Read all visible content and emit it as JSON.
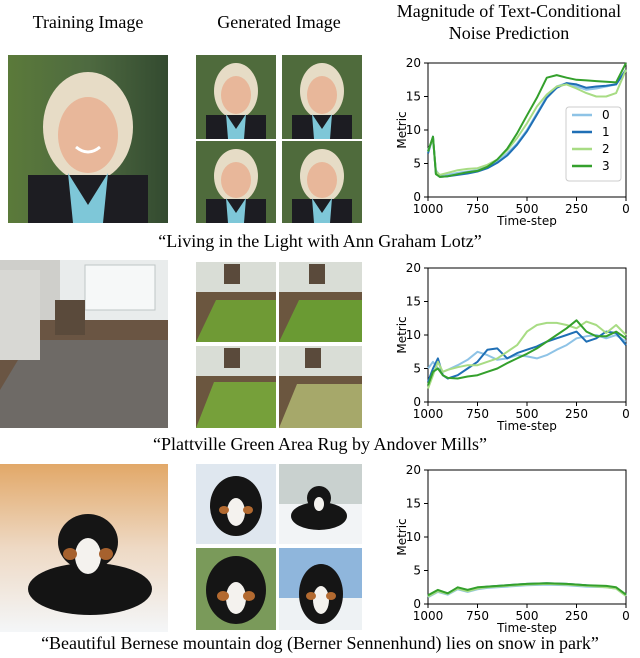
{
  "headers": {
    "training": "Training Image",
    "generated": "Generated Image",
    "magnitude": "Magnitude of Text-Conditional Noise Prediction"
  },
  "captions": [
    "“Living in the Light with Ann Graham Lotz”",
    "“Plattville Green Area Rug by Andover Mills”",
    "“Beautiful Bernese mountain dog (Berner Sennenhund) lies on snow in park”"
  ],
  "colors": {
    "s0": "#8ec3e6",
    "s1": "#1f6fb5",
    "s2": "#a8dc84",
    "s3": "#34a02c"
  },
  "chart_data": [
    {
      "type": "line",
      "xlabel": "Time-step",
      "ylabel": "Metric",
      "xlim": [
        1000,
        0
      ],
      "ylim": [
        0,
        20
      ],
      "xticks": [
        "1000",
        "750",
        "500",
        "250",
        "0"
      ],
      "yticks": [
        "0",
        "5",
        "10",
        "15",
        "20"
      ],
      "legend_position": "center-right",
      "series": [
        {
          "name": "0",
          "x": [
            1000,
            975,
            960,
            940,
            900,
            850,
            800,
            750,
            700,
            650,
            600,
            550,
            500,
            450,
            400,
            350,
            300,
            250,
            200,
            150,
            100,
            50,
            0
          ],
          "y": [
            7,
            8.5,
            4,
            3.2,
            3.3,
            3.6,
            3.8,
            4,
            4.5,
            5.3,
            6.5,
            8,
            10,
            12.5,
            15,
            16.5,
            17,
            16.5,
            16,
            16.2,
            16.5,
            16.8,
            19
          ]
        },
        {
          "name": "1",
          "x": [
            1000,
            975,
            960,
            940,
            900,
            850,
            800,
            750,
            700,
            650,
            600,
            550,
            500,
            450,
            400,
            350,
            300,
            250,
            200,
            150,
            100,
            50,
            0
          ],
          "y": [
            6.5,
            9,
            3.5,
            3,
            3.1,
            3.3,
            3.5,
            3.8,
            4.3,
            5.1,
            6.2,
            7.8,
            9.8,
            12.3,
            14.8,
            16.3,
            17,
            16.8,
            16.3,
            16.5,
            16.6,
            16.8,
            19
          ]
        },
        {
          "name": "2",
          "x": [
            1000,
            975,
            960,
            940,
            900,
            850,
            800,
            750,
            700,
            650,
            600,
            550,
            500,
            450,
            400,
            350,
            300,
            250,
            200,
            150,
            100,
            50,
            0
          ],
          "y": [
            6.8,
            8.8,
            3.8,
            3.3,
            3.6,
            4,
            4.2,
            4.3,
            4.8,
            5.6,
            7,
            8.8,
            11,
            13.5,
            15.3,
            16.5,
            16.8,
            16.2,
            15.5,
            15,
            15,
            15.5,
            19
          ]
        },
        {
          "name": "3",
          "x": [
            1000,
            975,
            960,
            940,
            900,
            850,
            800,
            750,
            700,
            650,
            600,
            550,
            500,
            450,
            400,
            350,
            300,
            250,
            200,
            150,
            100,
            50,
            0
          ],
          "y": [
            6.8,
            9,
            3.4,
            3,
            3.1,
            3.4,
            3.7,
            3.9,
            4.5,
            5.6,
            7.2,
            9.5,
            12.2,
            14.8,
            17.8,
            18.2,
            17.8,
            17.5,
            17.4,
            17.3,
            17.2,
            17.1,
            20
          ]
        }
      ]
    },
    {
      "type": "line",
      "xlabel": "Time-step",
      "ylabel": "Metric",
      "xlim": [
        1000,
        0
      ],
      "ylim": [
        0,
        20
      ],
      "xticks": [
        "1000",
        "750",
        "500",
        "250",
        "0"
      ],
      "yticks": [
        "0",
        "5",
        "10",
        "15",
        "20"
      ],
      "series": [
        {
          "name": "0",
          "x": [
            1000,
            975,
            950,
            925,
            900,
            850,
            800,
            750,
            700,
            650,
            600,
            550,
            500,
            450,
            400,
            350,
            300,
            250,
            200,
            150,
            100,
            50,
            0
          ],
          "y": [
            5,
            6,
            5,
            4.5,
            4.8,
            5.5,
            6.3,
            7.5,
            7,
            6.3,
            6.5,
            7,
            6.8,
            6.5,
            7,
            7.8,
            8.5,
            9.5,
            9.8,
            10,
            9.5,
            10,
            9
          ]
        },
        {
          "name": "1",
          "x": [
            1000,
            975,
            950,
            925,
            900,
            850,
            800,
            750,
            700,
            650,
            600,
            550,
            500,
            450,
            400,
            350,
            300,
            250,
            200,
            150,
            100,
            50,
            0
          ],
          "y": [
            3,
            5,
            6.5,
            4,
            3.5,
            4,
            5,
            6,
            7.8,
            8,
            6.5,
            7.3,
            7.8,
            8.3,
            9,
            9.5,
            10,
            10.5,
            9,
            9.5,
            10.5,
            10.3,
            8.5
          ]
        },
        {
          "name": "2",
          "x": [
            1000,
            975,
            950,
            925,
            900,
            850,
            800,
            750,
            700,
            650,
            600,
            550,
            500,
            450,
            400,
            350,
            300,
            250,
            200,
            150,
            100,
            50,
            0
          ],
          "y": [
            2,
            4,
            6,
            4.5,
            4.8,
            5.2,
            5.5,
            5.5,
            6,
            6.5,
            7.5,
            8.5,
            10.5,
            11.5,
            11.8,
            11.8,
            11.5,
            11,
            12,
            11.5,
            10.3,
            11.5,
            10
          ]
        },
        {
          "name": "3",
          "x": [
            1000,
            975,
            950,
            925,
            900,
            850,
            800,
            750,
            700,
            650,
            600,
            550,
            500,
            450,
            400,
            350,
            300,
            250,
            200,
            150,
            100,
            50,
            0
          ],
          "y": [
            2.5,
            4.5,
            5,
            4,
            3.6,
            3.5,
            3.8,
            4,
            4.5,
            5,
            5.8,
            6.5,
            7.2,
            8,
            9,
            10,
            11,
            12.2,
            10.5,
            9.8,
            9.8,
            10.5,
            9.5
          ]
        }
      ]
    },
    {
      "type": "line",
      "xlabel": "Time-step",
      "ylabel": "Metric",
      "xlim": [
        1000,
        0
      ],
      "ylim": [
        0,
        20
      ],
      "xticks": [
        "1000",
        "750",
        "500",
        "250",
        "0"
      ],
      "yticks": [
        "0",
        "5",
        "10",
        "15",
        "20"
      ],
      "series": [
        {
          "name": "0",
          "x": [
            1000,
            950,
            900,
            850,
            800,
            750,
            700,
            600,
            500,
            400,
            300,
            200,
            100,
            50,
            0
          ],
          "y": [
            1,
            1.8,
            1.4,
            2.2,
            1.8,
            2.2,
            2.4,
            2.6,
            2.8,
            2.9,
            2.8,
            2.6,
            2.5,
            2.3,
            1.2
          ]
        },
        {
          "name": "1",
          "x": [
            1000,
            950,
            900,
            850,
            800,
            750,
            700,
            600,
            500,
            400,
            300,
            200,
            100,
            50,
            0
          ],
          "y": [
            1.2,
            2,
            1.6,
            2.4,
            2,
            2.4,
            2.6,
            2.8,
            3,
            3.1,
            3,
            2.8,
            2.6,
            2.4,
            1.3
          ]
        },
        {
          "name": "2",
          "x": [
            1000,
            950,
            900,
            850,
            800,
            750,
            700,
            600,
            500,
            400,
            300,
            200,
            100,
            50,
            0
          ],
          "y": [
            1.1,
            1.9,
            1.5,
            2.3,
            1.9,
            2.3,
            2.5,
            2.7,
            2.9,
            3,
            2.9,
            2.7,
            2.5,
            2.3,
            1.2
          ]
        },
        {
          "name": "3",
          "x": [
            1000,
            950,
            900,
            850,
            800,
            750,
            700,
            600,
            500,
            400,
            300,
            200,
            100,
            50,
            0
          ],
          "y": [
            1.3,
            2.1,
            1.6,
            2.5,
            2.1,
            2.5,
            2.6,
            2.8,
            3,
            3.1,
            3,
            2.8,
            2.7,
            2.5,
            1.4
          ]
        }
      ]
    }
  ]
}
